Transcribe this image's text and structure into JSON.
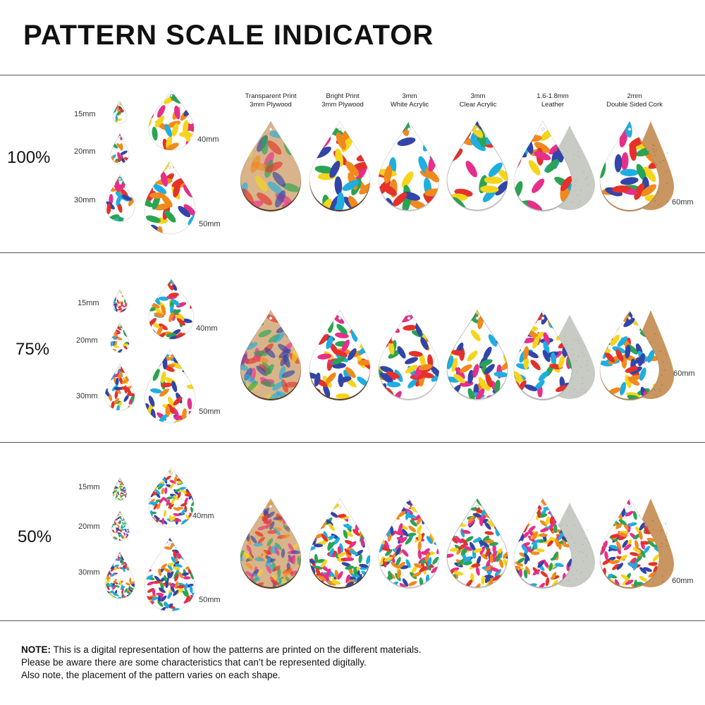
{
  "title": "PATTERN SCALE INDICATOR",
  "size_labels": {
    "s15": "15mm",
    "s20": "20mm",
    "s30": "30mm",
    "s40": "40mm",
    "s50": "50mm",
    "s60": "60mm"
  },
  "materials": [
    {
      "line1": "Transparent Print",
      "line2": "3mm Plywood"
    },
    {
      "line1": "Bright Print",
      "line2": "3mm Plywood"
    },
    {
      "line1": "3mm",
      "line2": "White Acrylic"
    },
    {
      "line1": "3mm",
      "line2": "Clear Acrylic"
    },
    {
      "line1": "1.6-1.8mm",
      "line2": "Leather"
    },
    {
      "line1": "2mm",
      "line2": "Double Sided Cork"
    }
  ],
  "rows": [
    {
      "scale": "100%"
    },
    {
      "scale": "75%"
    },
    {
      "scale": "50%"
    }
  ],
  "note": {
    "bold": "NOTE:",
    "line1": " This is a digital representation of how the patterns are printed on the different materials.",
    "line2": "Please be aware there are some characteristics that can’t be represented digitally.",
    "line3": "Also note, the placement of the pattern varies on each shape."
  },
  "colors": {
    "orange": "#f08a1d",
    "blue": "#3245a8",
    "pink": "#e62f8a",
    "yellow": "#f5d51c",
    "green": "#2aa452",
    "red": "#e4322b",
    "cyan": "#1eaee0",
    "wood": "#d9b48a",
    "cork": "#c99560",
    "leather": "#c8cbc4"
  }
}
